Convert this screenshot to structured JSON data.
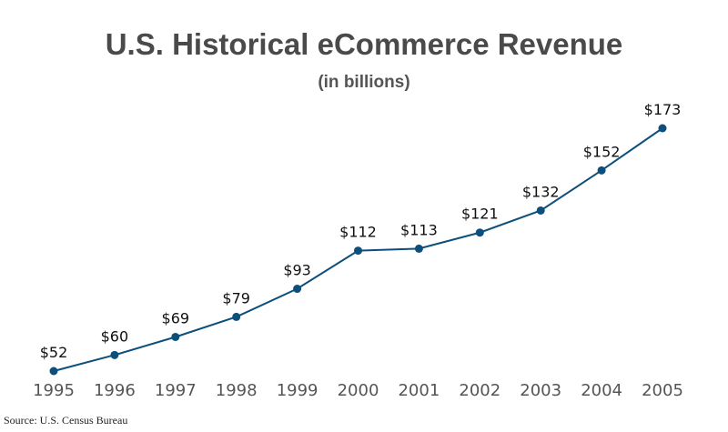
{
  "chart_data": {
    "type": "line",
    "title": "U.S. Historical eCommerce Revenue",
    "subtitle": "(in billions)",
    "categories": [
      "1995",
      "1996",
      "1997",
      "1998",
      "1999",
      "2000",
      "2001",
      "2002",
      "2003",
      "2004",
      "2005"
    ],
    "values": [
      52,
      60,
      69,
      79,
      93,
      112,
      113,
      121,
      132,
      152,
      173
    ],
    "data_labels": [
      "$52",
      "$60",
      "$69",
      "$79",
      "$93",
      "$112",
      "$113",
      "$121",
      "$132",
      "$152",
      "$173"
    ],
    "xlabel": "",
    "ylabel": "",
    "grid": false,
    "color": "#0d4f7c",
    "source": "Source: U.S. Census Bureau"
  }
}
